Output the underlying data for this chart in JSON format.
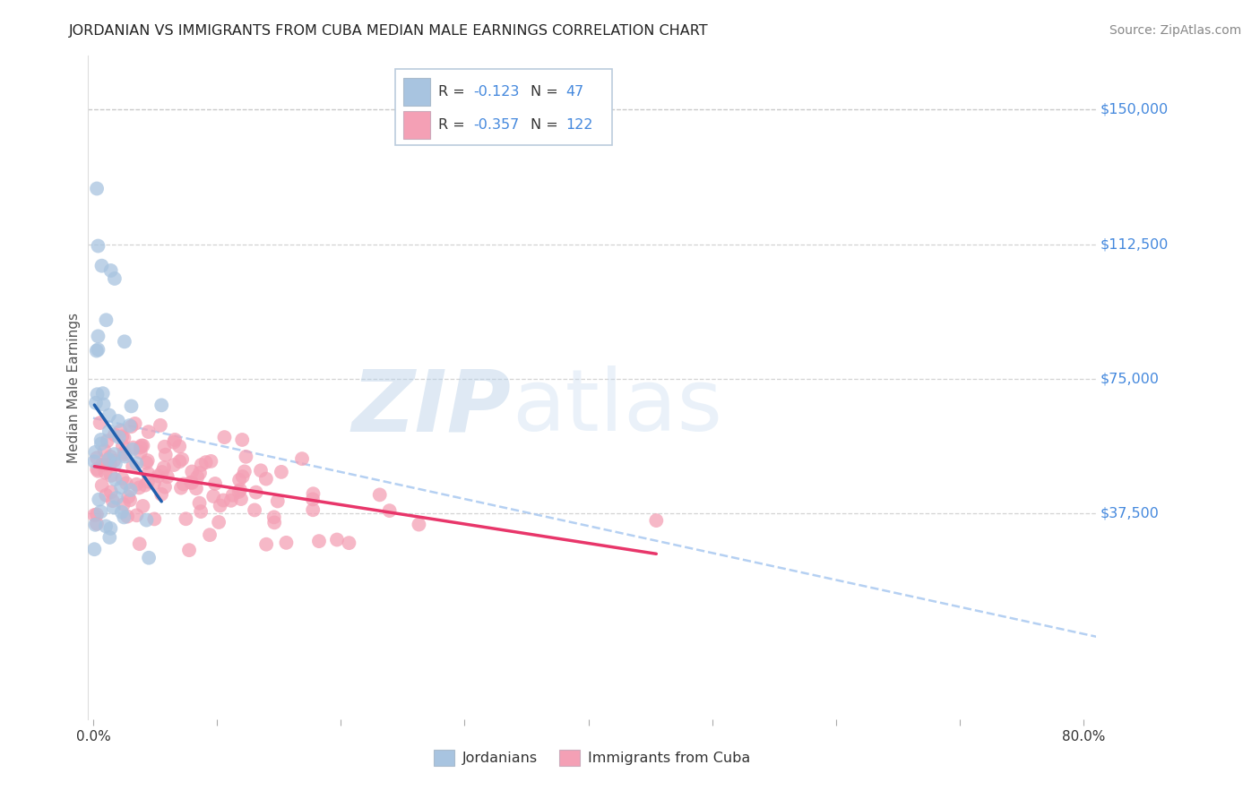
{
  "title": "JORDANIAN VS IMMIGRANTS FROM CUBA MEDIAN MALE EARNINGS CORRELATION CHART",
  "source": "Source: ZipAtlas.com",
  "ylabel": "Median Male Earnings",
  "y_tick_labels": [
    "$37,500",
    "$75,000",
    "$112,500",
    "$150,000"
  ],
  "y_tick_values": [
    37500,
    75000,
    112500,
    150000
  ],
  "y_max": 165000,
  "y_min": -20000,
  "x_min": -0.004,
  "x_max": 0.81,
  "blue_color": "#A8C4E0",
  "pink_color": "#F4A0B5",
  "blue_line_color": "#1F5FAD",
  "pink_line_color": "#E8366A",
  "dashed_line_color": "#A8C8F0",
  "background_color": "#FFFFFF",
  "grid_color": "#C8C8C8",
  "series1_name": "Jordanians",
  "series2_name": "Immigrants from Cuba",
  "legend_R1_val": "-0.123",
  "legend_N1_val": "47",
  "legend_R2_val": "-0.357",
  "legend_N2_val": "122",
  "right_label_color": "#4488DD",
  "text_color": "#333333"
}
